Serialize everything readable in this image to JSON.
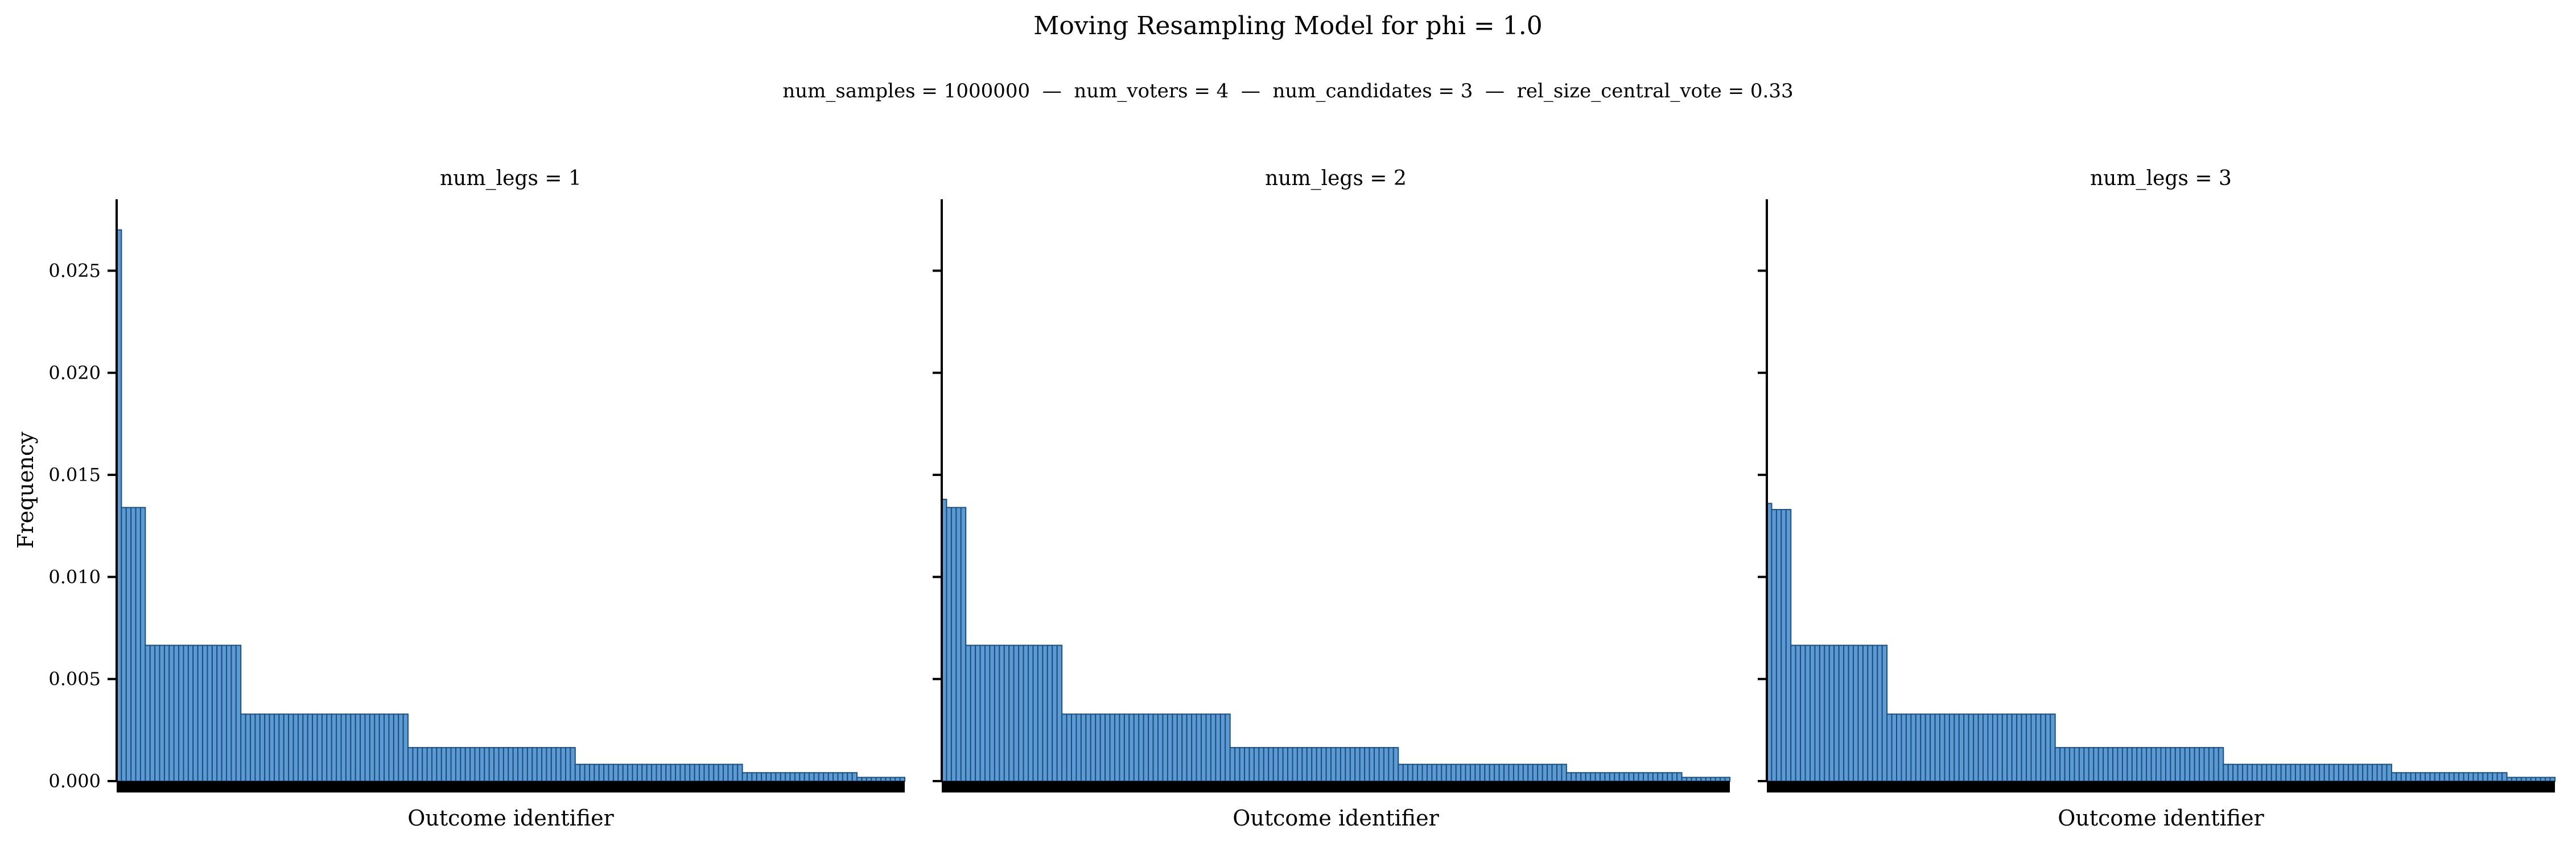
{
  "figure": {
    "title": "Moving Resampling Model for phi = 1.0",
    "subtitle": "num_samples = 1000000  —  num_voters = 4  —  num_candidates = 3  —  rel_size_central_vote = 0.33",
    "bar_color": "#5b9bd5",
    "bar_edge_color": "#1f4e79"
  },
  "chart_data": [
    {
      "type": "bar",
      "title": "num_legs = 1",
      "xlabel": "Outcome identifier",
      "ylabel": "Frequency",
      "ylim": [
        0,
        0.0285
      ],
      "yticks": [
        "0.000",
        "0.005",
        "0.010",
        "0.015",
        "0.020",
        "0.025"
      ],
      "grid": false,
      "groups": [
        {
          "count": 1,
          "value": 0.027
        },
        {
          "count": 5,
          "value": 0.0134
        },
        {
          "count": 20,
          "value": 0.00665
        },
        {
          "count": 35,
          "value": 0.00328
        },
        {
          "count": 35,
          "value": 0.00164
        },
        {
          "count": 35,
          "value": 0.00082
        },
        {
          "count": 24,
          "value": 0.00041
        },
        {
          "count": 10,
          "value": 0.00018
        }
      ]
    },
    {
      "type": "bar",
      "title": "num_legs = 2",
      "xlabel": "Outcome identifier",
      "ylabel": "",
      "ylim": [
        0,
        0.0285
      ],
      "yticks": [
        "",
        "",
        "",
        "",
        "",
        ""
      ],
      "grid": false,
      "groups": [
        {
          "count": 1,
          "value": 0.0138
        },
        {
          "count": 4,
          "value": 0.0134
        },
        {
          "count": 20,
          "value": 0.00665
        },
        {
          "count": 35,
          "value": 0.00328
        },
        {
          "count": 35,
          "value": 0.00164
        },
        {
          "count": 35,
          "value": 0.00082
        },
        {
          "count": 24,
          "value": 0.00041
        },
        {
          "count": 10,
          "value": 0.00018
        }
      ]
    },
    {
      "type": "bar",
      "title": "num_legs = 3",
      "xlabel": "Outcome identifier",
      "ylabel": "",
      "ylim": [
        0,
        0.0285
      ],
      "yticks": [
        "",
        "",
        "",
        "",
        "",
        ""
      ],
      "grid": false,
      "groups": [
        {
          "count": 1,
          "value": 0.0136
        },
        {
          "count": 4,
          "value": 0.0133
        },
        {
          "count": 20,
          "value": 0.00665
        },
        {
          "count": 35,
          "value": 0.00328
        },
        {
          "count": 35,
          "value": 0.00164
        },
        {
          "count": 35,
          "value": 0.00082
        },
        {
          "count": 24,
          "value": 0.00041
        },
        {
          "count": 10,
          "value": 0.00018
        }
      ]
    }
  ]
}
